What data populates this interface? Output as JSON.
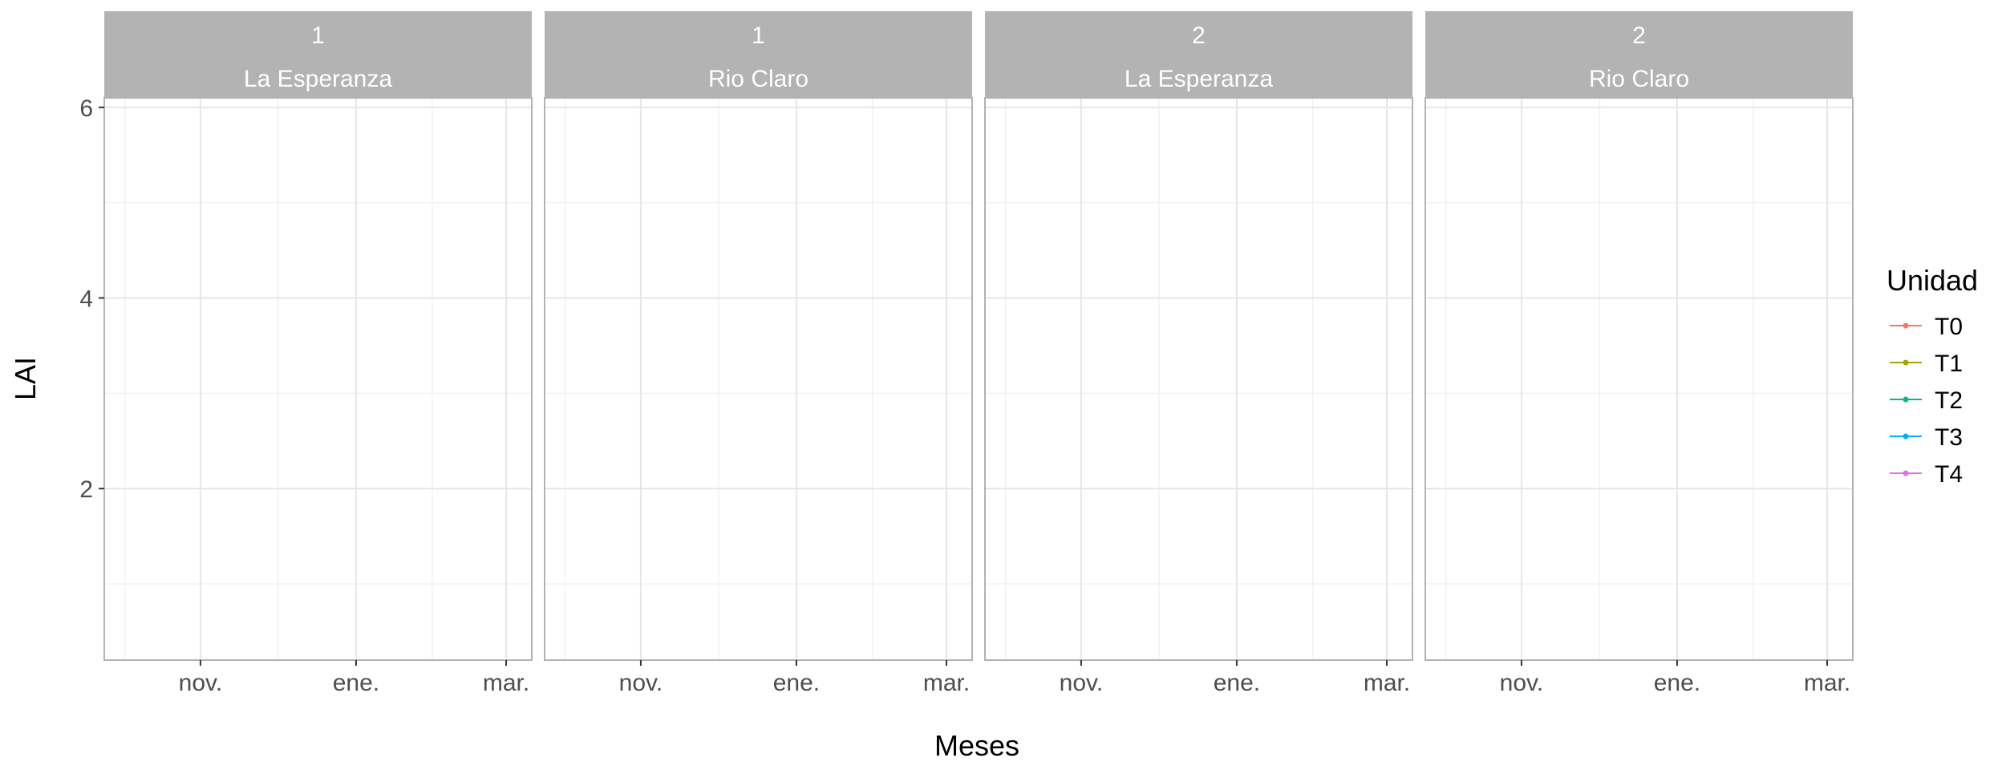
{
  "chart_data": {
    "type": "line",
    "xlabel": "Meses",
    "ylabel": "LAI",
    "x_ticks": [
      "nov.",
      "ene.",
      "mar."
    ],
    "y_ticks": [
      2,
      4,
      6
    ],
    "ylim": [
      0.2,
      6.1
    ],
    "grid": true,
    "legend": {
      "title": "Unidad",
      "placement": "right",
      "entries": [
        {
          "name": "T0",
          "color": "#F8766D"
        },
        {
          "name": "T1",
          "color": "#A3A500"
        },
        {
          "name": "T2",
          "color": "#00BF7D"
        },
        {
          "name": "T3",
          "color": "#00B0F6"
        },
        {
          "name": "T4",
          "color": "#E76BF3"
        }
      ]
    },
    "facets": [
      {
        "row1": "1",
        "row2": "La Esperanza",
        "series": []
      },
      {
        "row1": "1",
        "row2": "Rio Claro",
        "series": []
      },
      {
        "row1": "2",
        "row2": "La Esperanza",
        "series": []
      },
      {
        "row1": "2",
        "row2": "Rio Claro",
        "series": []
      }
    ]
  },
  "colors": {
    "strip_bg": "#B3B3B3",
    "panel_border": "#B3B3B3",
    "grid_major": "#E6E6E6",
    "grid_minor": "#F2F2F2"
  }
}
